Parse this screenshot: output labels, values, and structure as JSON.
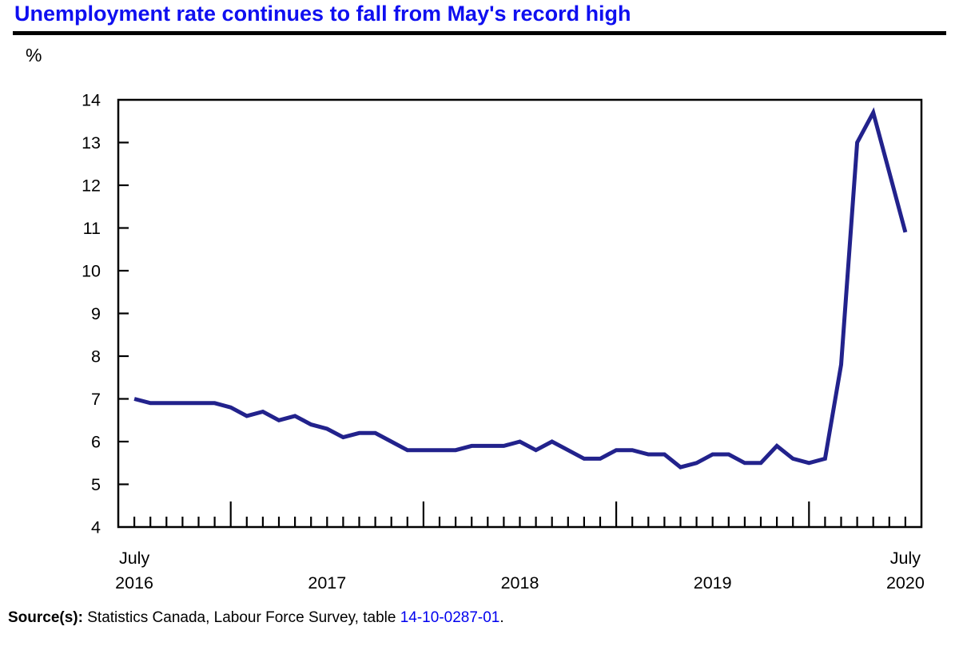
{
  "header": {
    "title": "Unemployment rate continues to fall from May's record high",
    "title_color": "#0f0ff0"
  },
  "chart": {
    "unit_label": "%",
    "frame_color": "#000000",
    "line_color": "#22228c",
    "tick_label_color": "#000000"
  },
  "chart_data": {
    "type": "line",
    "title": "Unemployment rate continues to fall from May's record high",
    "xlabel": "",
    "ylabel": "%",
    "ylim": [
      4,
      14
    ],
    "y_ticks": [
      4,
      5,
      6,
      7,
      8,
      9,
      10,
      11,
      12,
      13,
      14
    ],
    "grid": false,
    "legend_position": "none",
    "x_range": "monthly, July 2016 to July 2020",
    "months": [
      "2016-07",
      "2016-08",
      "2016-09",
      "2016-10",
      "2016-11",
      "2016-12",
      "2017-01",
      "2017-02",
      "2017-03",
      "2017-04",
      "2017-05",
      "2017-06",
      "2017-07",
      "2017-08",
      "2017-09",
      "2017-10",
      "2017-11",
      "2017-12",
      "2018-01",
      "2018-02",
      "2018-03",
      "2018-04",
      "2018-05",
      "2018-06",
      "2018-07",
      "2018-08",
      "2018-09",
      "2018-10",
      "2018-11",
      "2018-12",
      "2019-01",
      "2019-02",
      "2019-03",
      "2019-04",
      "2019-05",
      "2019-06",
      "2019-07",
      "2019-08",
      "2019-09",
      "2019-10",
      "2019-11",
      "2019-12",
      "2020-01",
      "2020-02",
      "2020-03",
      "2020-04",
      "2020-05",
      "2020-06",
      "2020-07"
    ],
    "series": [
      {
        "name": "Unemployment rate (%)",
        "color": "#22228c",
        "values": [
          7.0,
          6.9,
          6.9,
          6.9,
          6.9,
          6.9,
          6.8,
          6.6,
          6.7,
          6.5,
          6.6,
          6.4,
          6.3,
          6.1,
          6.2,
          6.2,
          6.0,
          5.8,
          5.8,
          5.8,
          5.8,
          5.9,
          5.9,
          5.9,
          6.0,
          5.8,
          6.0,
          5.8,
          5.6,
          5.6,
          5.8,
          5.8,
          5.7,
          5.7,
          5.4,
          5.5,
          5.7,
          5.7,
          5.5,
          5.5,
          5.9,
          5.6,
          5.5,
          5.6,
          7.8,
          13.0,
          13.7,
          12.3,
          10.9
        ]
      }
    ],
    "x_axis_labels": [
      {
        "line1": "July",
        "line2": "2016",
        "month_index": 0
      },
      {
        "line1": "",
        "line2": "2017",
        "month_index": 12
      },
      {
        "line1": "",
        "line2": "2018",
        "month_index": 24
      },
      {
        "line1": "",
        "line2": "2019",
        "month_index": 36
      },
      {
        "line1": "July",
        "line2": "2020",
        "month_index": 48
      }
    ]
  },
  "source": {
    "prefix_bold": "Source(s):",
    "text": " Statistics Canada, Labour Force Survey, table ",
    "link": "14-10-0287-01",
    "suffix": ".",
    "link_color": "#0000ee"
  }
}
